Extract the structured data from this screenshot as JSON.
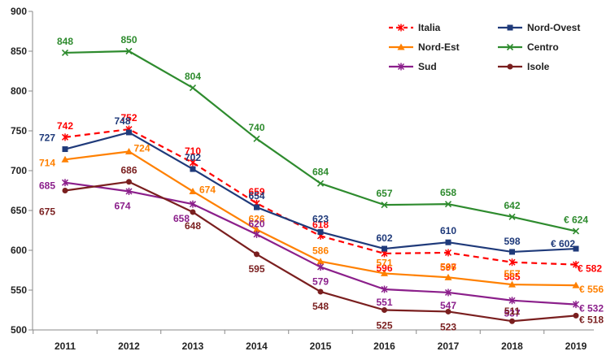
{
  "chart_data": {
    "type": "line",
    "title": "",
    "xlabel": "",
    "ylabel": "",
    "x": [
      "2011",
      "2012",
      "2013",
      "2014",
      "2015",
      "2016",
      "2017",
      "2018",
      "2019"
    ],
    "ylim": [
      500,
      900
    ],
    "yticks": [
      500,
      550,
      600,
      650,
      700,
      750,
      800,
      850,
      900
    ],
    "grid": false,
    "legend": "top-right, 3 rows x 2 columns",
    "series": [
      {
        "name": "Italia",
        "color": "#ff0000",
        "dash": true,
        "marker": "asterisk",
        "values": [
          742,
          752,
          710,
          659,
          618,
          596,
          597,
          585,
          582
        ],
        "labels": [
          "742",
          "752",
          "710",
          "659",
          "618",
          "596",
          "597",
          "585",
          "€ 582"
        ]
      },
      {
        "name": "Nord-Ovest",
        "color": "#1f3a7a",
        "dash": false,
        "marker": "square",
        "values": [
          727,
          748,
          702,
          654,
          623,
          602,
          610,
          598,
          602
        ],
        "labels": [
          "727",
          "748",
          "702",
          "654",
          "623",
          "602",
          "610",
          "598",
          "€ 602"
        ]
      },
      {
        "name": "Nord-Est",
        "color": "#ff8000",
        "dash": false,
        "marker": "triangle",
        "values": [
          714,
          724,
          674,
          626,
          586,
          571,
          566,
          557,
          556
        ],
        "labels": [
          "714",
          "724",
          "674",
          "626",
          "586",
          "571",
          "566",
          "557",
          "€ 556"
        ]
      },
      {
        "name": "Centro",
        "color": "#2e8b2e",
        "dash": false,
        "marker": "cross",
        "values": [
          848,
          850,
          804,
          740,
          684,
          657,
          658,
          642,
          624
        ],
        "labels": [
          "848",
          "850",
          "804",
          "740",
          "684",
          "657",
          "658",
          "642",
          "€ 624"
        ]
      },
      {
        "name": "Sud",
        "color": "#8b1f8b",
        "dash": false,
        "marker": "asterisk",
        "values": [
          685,
          674,
          658,
          620,
          579,
          551,
          547,
          537,
          532
        ],
        "labels": [
          "685",
          "674",
          "658",
          "620",
          "579",
          "551",
          "547",
          "537",
          "€ 532"
        ]
      },
      {
        "name": "Isole",
        "color": "#7a1f1f",
        "dash": false,
        "marker": "circle",
        "values": [
          675,
          686,
          648,
          595,
          548,
          525,
          523,
          511,
          518
        ],
        "labels": [
          "675",
          "686",
          "648",
          "595",
          "548",
          "525",
          "523",
          "511",
          "€ 518"
        ]
      }
    ]
  }
}
